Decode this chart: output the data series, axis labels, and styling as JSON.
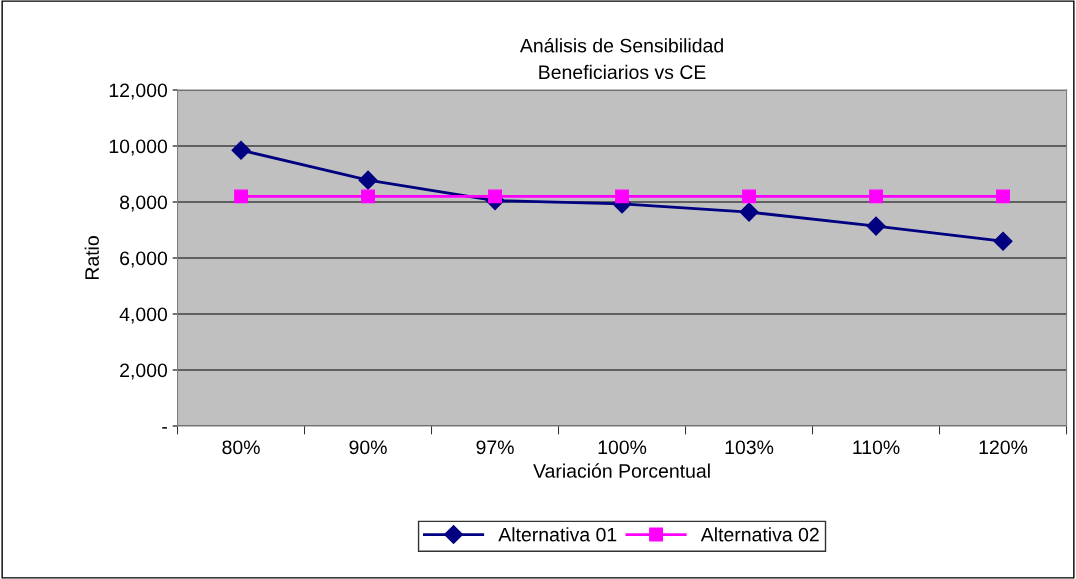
{
  "chart_data": {
    "type": "line",
    "title": "Análisis de Sensibilidad\nBeneficiarios vs CE",
    "xlabel": "Variación Porcentual",
    "ylabel": "Ratio",
    "categories": [
      "80%",
      "90%",
      "97%",
      "100%",
      "103%",
      "110%",
      "120%"
    ],
    "series": [
      {
        "name": "Alternativa 01",
        "color": "#000080",
        "marker": "diamond",
        "values": [
          9850,
          8780,
          8050,
          7930,
          7640,
          7140,
          6600
        ]
      },
      {
        "name": "Alternativa 02",
        "color": "#ff00ff",
        "marker": "square",
        "values": [
          8200,
          8200,
          8200,
          8200,
          8200,
          8200,
          8200
        ]
      }
    ],
    "ylim": [
      0,
      12000
    ],
    "yticks": [
      {
        "value": 0,
        "label": "-"
      },
      {
        "value": 2000,
        "label": "2,000"
      },
      {
        "value": 4000,
        "label": "4,000"
      },
      {
        "value": 6000,
        "label": "6,000"
      },
      {
        "value": 8000,
        "label": "8,000"
      },
      {
        "value": 10000,
        "label": "10,000"
      },
      {
        "value": 12000,
        "label": "12,000"
      }
    ],
    "grid": "y",
    "legend": "bottom"
  }
}
